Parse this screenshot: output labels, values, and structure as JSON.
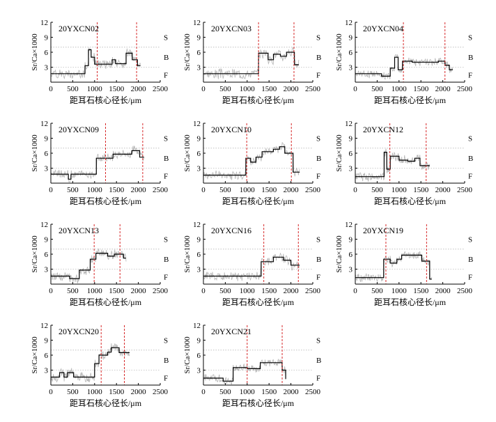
{
  "chart_data": [
    {
      "type": "line",
      "title": "20YXCN02",
      "xlabel": "距耳石核心径长/μm",
      "ylabel": "Sr/Ca×1000",
      "xlim": [
        0,
        2500
      ],
      "ylim": [
        0,
        12
      ],
      "xticks": [
        0,
        500,
        1000,
        1500,
        2000,
        2500
      ],
      "yticks": [
        3,
        6,
        9,
        12
      ],
      "zone_labels": [
        "S",
        "B",
        "F"
      ],
      "thresholds": [
        3,
        7
      ],
      "x_max": 2050,
      "vlines": [
        1060,
        1960
      ],
      "steps": [
        [
          0,
          1.7
        ],
        [
          780,
          3.3
        ],
        [
          860,
          6.5
        ],
        [
          920,
          5.0
        ],
        [
          1000,
          3.6
        ],
        [
          1400,
          4.5
        ],
        [
          1480,
          3.7
        ],
        [
          1720,
          5.8
        ],
        [
          1860,
          4.5
        ],
        [
          1980,
          3.3
        ],
        [
          2050,
          3.3
        ]
      ],
      "jitter": 0.8,
      "seed": 2
    },
    {
      "type": "line",
      "title": "20YXCN03",
      "xlabel": "距耳石核心径长/μm",
      "ylabel": "Sr/Ca×1000",
      "xlim": [
        0,
        2500
      ],
      "ylim": [
        0,
        12
      ],
      "xticks": [
        0,
        500,
        1000,
        1500,
        2000,
        2500
      ],
      "yticks": [
        3,
        6,
        9,
        12
      ],
      "zone_labels": [
        "S",
        "B",
        "F"
      ],
      "thresholds": [
        3,
        7
      ],
      "x_max": 2180,
      "vlines": [
        1260,
        2070
      ],
      "steps": [
        [
          0,
          1.7
        ],
        [
          1260,
          5.8
        ],
        [
          1480,
          4.5
        ],
        [
          1600,
          5.6
        ],
        [
          1760,
          5.2
        ],
        [
          1900,
          6.0
        ],
        [
          2080,
          3.5
        ],
        [
          2180,
          3.5
        ]
      ],
      "jitter": 0.9,
      "seed": 3
    },
    {
      "type": "line",
      "title": "20YXCN04",
      "xlabel": "距耳石核心径长/μm",
      "ylabel": "Sr/Ca×1000",
      "xlim": [
        0,
        2500
      ],
      "ylim": [
        0,
        12
      ],
      "xticks": [
        0,
        500,
        1000,
        1500,
        2000,
        2500
      ],
      "yticks": [
        3,
        6,
        9,
        12
      ],
      "zone_labels": [
        "S",
        "B",
        "F"
      ],
      "thresholds": [
        3,
        7
      ],
      "x_max": 2230,
      "vlines": [
        1100,
        2050
      ],
      "steps": [
        [
          0,
          1.7
        ],
        [
          600,
          1.2
        ],
        [
          800,
          2.8
        ],
        [
          900,
          5.0
        ],
        [
          980,
          2.5
        ],
        [
          1080,
          4.2
        ],
        [
          1300,
          4.0
        ],
        [
          1900,
          4.2
        ],
        [
          2050,
          3.4
        ],
        [
          2150,
          2.5
        ],
        [
          2230,
          2.5
        ]
      ],
      "jitter": 0.7,
      "seed": 4
    },
    {
      "type": "line",
      "title": "20YXCN09",
      "xlabel": "距耳石核心径长/μm",
      "ylabel": "Sr/Ca×1000",
      "xlim": [
        0,
        2500
      ],
      "ylim": [
        0,
        12
      ],
      "xticks": [
        0,
        500,
        1000,
        1500,
        2000,
        2500
      ],
      "yticks": [
        3,
        6,
        9,
        12
      ],
      "zone_labels": [
        "S",
        "B",
        "F"
      ],
      "thresholds": [
        3,
        7
      ],
      "x_max": 2130,
      "vlines": [
        1250,
        2100
      ],
      "steps": [
        [
          0,
          1.8
        ],
        [
          400,
          0.8
        ],
        [
          460,
          1.8
        ],
        [
          1040,
          5.0
        ],
        [
          1420,
          5.8
        ],
        [
          1850,
          6.5
        ],
        [
          2030,
          5.2
        ],
        [
          2130,
          5.2
        ]
      ],
      "jitter": 0.8,
      "seed": 9
    },
    {
      "type": "line",
      "title": "20YXCN10",
      "xlabel": "距耳石核心径长/μm",
      "ylabel": "Sr/Ca×1000",
      "xlim": [
        0,
        2500
      ],
      "ylim": [
        0,
        12
      ],
      "xticks": [
        0,
        500,
        1000,
        1500,
        2000,
        2500
      ],
      "yticks": [
        3,
        6,
        9,
        12
      ],
      "zone_labels": [
        "S",
        "B",
        "F"
      ],
      "thresholds": [
        3,
        7
      ],
      "x_max": 2200,
      "vlines": [
        990,
        2010
      ],
      "steps": [
        [
          0,
          1.6
        ],
        [
          970,
          5.0
        ],
        [
          1080,
          4.2
        ],
        [
          1200,
          5.2
        ],
        [
          1340,
          6.3
        ],
        [
          1600,
          6.8
        ],
        [
          1740,
          7.3
        ],
        [
          1860,
          6.0
        ],
        [
          2050,
          2.2
        ],
        [
          2200,
          2.2
        ]
      ],
      "jitter": 0.8,
      "seed": 10
    },
    {
      "type": "line",
      "title": "20YXCN12",
      "xlabel": "距耳石核心径长/μm",
      "ylabel": "Sr/Ca×1000",
      "xlim": [
        0,
        2500
      ],
      "ylim": [
        0,
        12
      ],
      "xticks": [
        0,
        500,
        1000,
        1500,
        2000,
        2500
      ],
      "yticks": [
        3,
        6,
        9,
        12
      ],
      "zone_labels": [
        "S",
        "B",
        "F"
      ],
      "thresholds": [
        3,
        7
      ],
      "x_max": 1700,
      "vlines": [
        790,
        1620
      ],
      "steps": [
        [
          0,
          1.3
        ],
        [
          660,
          6.2
        ],
        [
          720,
          2.8
        ],
        [
          800,
          5.4
        ],
        [
          1000,
          4.6
        ],
        [
          1200,
          4.4
        ],
        [
          1360,
          5.0
        ],
        [
          1480,
          3.5
        ],
        [
          1700,
          3.5
        ]
      ],
      "jitter": 0.8,
      "seed": 12
    },
    {
      "type": "line",
      "title": "20YXCN13",
      "xlabel": "距耳石核心径长/μm",
      "ylabel": "Sr/Ca×1000",
      "xlim": [
        0,
        2500
      ],
      "ylim": [
        0,
        12
      ],
      "xticks": [
        0,
        500,
        1000,
        1500,
        2000,
        2500
      ],
      "yticks": [
        3,
        6,
        9,
        12
      ],
      "zone_labels": [
        "S",
        "B",
        "F"
      ],
      "thresholds": [
        3,
        7
      ],
      "x_max": 1720,
      "vlines": [
        990,
        1580
      ],
      "steps": [
        [
          0,
          1.6
        ],
        [
          430,
          1.1
        ],
        [
          650,
          2.8
        ],
        [
          900,
          5.0
        ],
        [
          1030,
          6.2
        ],
        [
          1300,
          5.6
        ],
        [
          1450,
          6.0
        ],
        [
          1660,
          5.2
        ],
        [
          1720,
          5.2
        ]
      ],
      "jitter": 0.8,
      "seed": 13
    },
    {
      "type": "line",
      "title": "20YXCN16",
      "xlabel": "距耳石核心径长/μm",
      "ylabel": "Sr/Ca×1000",
      "xlim": [
        0,
        2500
      ],
      "ylim": [
        0,
        12
      ],
      "xticks": [
        0,
        500,
        1000,
        1500,
        2000,
        2500
      ],
      "yticks": [
        3,
        6,
        9,
        12
      ],
      "zone_labels": [
        "S",
        "B",
        "F"
      ],
      "thresholds": [
        3,
        7
      ],
      "x_max": 2200,
      "vlines": [
        1380,
        2170
      ],
      "steps": [
        [
          0,
          1.6
        ],
        [
          1320,
          4.5
        ],
        [
          1600,
          5.4
        ],
        [
          1830,
          4.8
        ],
        [
          2000,
          3.8
        ],
        [
          2170,
          3.8
        ],
        [
          2200,
          3.8
        ]
      ],
      "jitter": 0.8,
      "seed": 16
    },
    {
      "type": "line",
      "title": "20YXCN19",
      "xlabel": "距耳石核心径长/μm",
      "ylabel": "Sr/Ca×1000",
      "xlim": [
        0,
        2500
      ],
      "ylim": [
        0,
        12
      ],
      "xticks": [
        0,
        500,
        1000,
        1500,
        2000,
        2500
      ],
      "yticks": [
        3,
        6,
        9,
        12
      ],
      "zone_labels": [
        "S",
        "B",
        "F"
      ],
      "thresholds": [
        3,
        7
      ],
      "x_max": 1750,
      "vlines": [
        700,
        1630
      ],
      "steps": [
        [
          0,
          1.3
        ],
        [
          650,
          5.0
        ],
        [
          800,
          4.2
        ],
        [
          950,
          5.0
        ],
        [
          1060,
          5.8
        ],
        [
          1520,
          4.6
        ],
        [
          1700,
          1.0
        ],
        [
          1750,
          1.0
        ]
      ],
      "jitter": 0.7,
      "seed": 19
    },
    {
      "type": "line",
      "title": "20YXCN20",
      "xlabel": "距耳石核心径长/μm",
      "ylabel": "Sr/Ca×1000",
      "xlim": [
        0,
        2500
      ],
      "ylim": [
        0,
        12
      ],
      "xticks": [
        0,
        500,
        1000,
        1500,
        2000,
        2500
      ],
      "yticks": [
        3,
        6,
        9,
        12
      ],
      "zone_labels": [
        "S",
        "B",
        "F"
      ],
      "thresholds": [
        3,
        7
      ],
      "x_max": 1800,
      "vlines": [
        1150,
        1680
      ],
      "steps": [
        [
          0,
          1.6
        ],
        [
          200,
          2.5
        ],
        [
          300,
          1.6
        ],
        [
          380,
          2.5
        ],
        [
          520,
          1.6
        ],
        [
          1000,
          4.3
        ],
        [
          1100,
          6.0
        ],
        [
          1300,
          6.6
        ],
        [
          1380,
          7.5
        ],
        [
          1560,
          6.5
        ],
        [
          1800,
          6.5
        ]
      ],
      "jitter": 0.8,
      "seed": 20
    },
    {
      "type": "line",
      "title": "20YXCN21",
      "xlabel": "距耳石核心径长/μm",
      "ylabel": "Sr/Ca×1000",
      "xlim": [
        0,
        2500
      ],
      "ylim": [
        0,
        12
      ],
      "xticks": [
        0,
        500,
        1000,
        1500,
        2000,
        2500
      ],
      "yticks": [
        3,
        6,
        9,
        12
      ],
      "zone_labels": [
        "S",
        "B",
        "F"
      ],
      "thresholds": [
        3,
        7
      ],
      "x_max": 1880,
      "vlines": [
        1000,
        1800
      ],
      "steps": [
        [
          0,
          1.4
        ],
        [
          450,
          0.8
        ],
        [
          680,
          3.5
        ],
        [
          1000,
          3.3
        ],
        [
          1300,
          4.5
        ],
        [
          1800,
          3.0
        ],
        [
          1880,
          1.2
        ]
      ],
      "jitter": 0.7,
      "seed": 21
    }
  ]
}
